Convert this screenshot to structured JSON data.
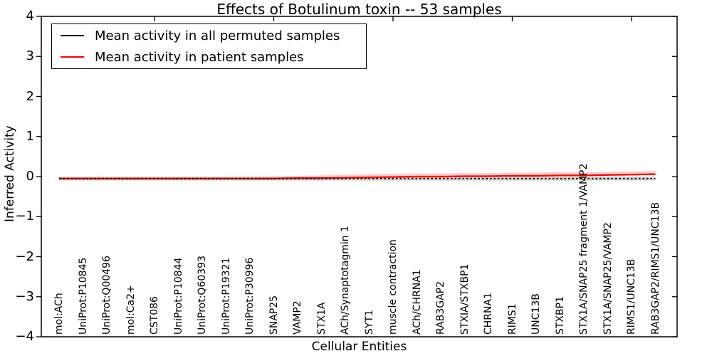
{
  "chart_data": {
    "type": "line",
    "title": "Effects of Botulinum toxin -- 53 samples",
    "xlabel": "Cellular Entities",
    "ylabel": "Inferred Activity",
    "ylim": [
      -4,
      4
    ],
    "yticks": [
      -4,
      -3,
      -2,
      -1,
      0,
      1,
      2,
      3,
      4
    ],
    "grid": false,
    "legend_position": "upper left",
    "xtick_indices": [
      4,
      9,
      14,
      19,
      24
    ],
    "categories": [
      "mol:ACh",
      "UniProt:P10845",
      "UniProt:Q00496",
      "mol:Ca2+",
      "CST086",
      "UniProt:P10844",
      "UniProt:Q60393",
      "UniProt:P19321",
      "UniProt:P30996",
      "SNAP25",
      "VAMP2",
      "STX1A",
      "ACh/Synaptotagmin 1",
      "SYT1",
      "muscle contraction",
      "ACh/CHRNA1",
      "RAB3GAP2",
      "STXIA/STXBP1",
      "CHRNA1",
      "RIMS1",
      "UNC13B",
      "STXBP1",
      "STX1A/SNAP25 fragment 1/VAMP2",
      "STX1A/SNAP25/VAMP2",
      "RIMS1/UNC13B",
      "RAB3GAP2/RIMS1/UNC13B"
    ],
    "series": [
      {
        "name": "Mean activity in all permuted samples",
        "color": "#000000",
        "style": "dotted",
        "values": [
          -0.05,
          -0.05,
          -0.05,
          -0.05,
          -0.05,
          -0.05,
          -0.05,
          -0.05,
          -0.05,
          -0.05,
          -0.05,
          -0.05,
          -0.05,
          -0.05,
          -0.05,
          -0.05,
          -0.05,
          -0.05,
          -0.05,
          -0.05,
          -0.05,
          -0.05,
          -0.05,
          -0.05,
          -0.05,
          -0.05
        ],
        "band": {
          "color": "rgba(130,130,130,0.35)",
          "upper": [
            0.0,
            0.0,
            0.0,
            0.0,
            0.0,
            0.0,
            0.0,
            0.0,
            0.0,
            0.0,
            0.0,
            0.0,
            0.0,
            0.0,
            0.0,
            0.0,
            0.0,
            0.0,
            0.0,
            0.0,
            0.0,
            0.0,
            0.0,
            0.0,
            0.0,
            0.0
          ],
          "lower": [
            -0.1,
            -0.1,
            -0.1,
            -0.1,
            -0.1,
            -0.1,
            -0.1,
            -0.1,
            -0.1,
            -0.1,
            -0.1,
            -0.1,
            -0.1,
            -0.1,
            -0.1,
            -0.1,
            -0.1,
            -0.1,
            -0.1,
            -0.1,
            -0.1,
            -0.1,
            -0.1,
            -0.1,
            -0.1,
            -0.1
          ]
        }
      },
      {
        "name": "Mean activity in patient samples",
        "color": "#ff0000",
        "style": "solid",
        "values": [
          -0.05,
          -0.05,
          -0.05,
          -0.05,
          -0.05,
          -0.05,
          -0.05,
          -0.05,
          -0.05,
          -0.05,
          -0.04,
          -0.04,
          -0.03,
          -0.02,
          -0.01,
          0.0,
          0.0,
          0.01,
          0.01,
          0.02,
          0.02,
          0.03,
          0.03,
          0.04,
          0.05,
          0.06
        ],
        "band": {
          "color": "rgba(255,30,30,0.22)",
          "upper": [
            -0.01,
            -0.01,
            -0.01,
            -0.01,
            -0.01,
            -0.01,
            -0.01,
            -0.01,
            0.0,
            0.0,
            0.02,
            0.03,
            0.05,
            0.06,
            0.07,
            0.08,
            0.08,
            0.09,
            0.09,
            0.1,
            0.1,
            0.11,
            0.11,
            0.12,
            0.13,
            0.14
          ],
          "lower": [
            -0.08,
            -0.08,
            -0.08,
            -0.08,
            -0.08,
            -0.08,
            -0.08,
            -0.08,
            -0.08,
            -0.08,
            -0.07,
            -0.07,
            -0.06,
            -0.05,
            -0.04,
            -0.03,
            -0.03,
            -0.02,
            -0.02,
            -0.01,
            -0.01,
            0.0,
            0.0,
            0.01,
            0.02,
            0.03
          ]
        }
      }
    ]
  }
}
